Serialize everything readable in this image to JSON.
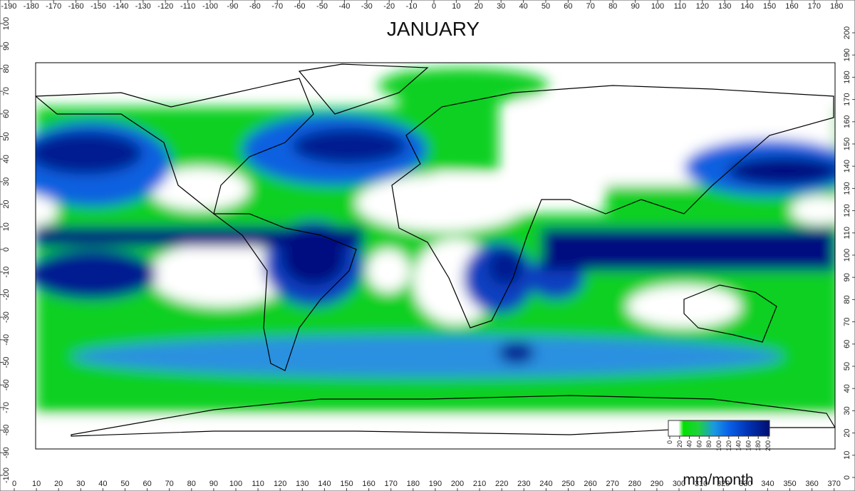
{
  "title": "JANUARY",
  "top_axis": [
    -190,
    -180,
    -170,
    -160,
    -150,
    -140,
    -130,
    -120,
    -110,
    -100,
    -90,
    -80,
    -70,
    -60,
    -50,
    -40,
    -30,
    -20,
    -10,
    0,
    10,
    20,
    30,
    40,
    50,
    60,
    70,
    80,
    90,
    100,
    110,
    120,
    130,
    140,
    150,
    160,
    170,
    180
  ],
  "bottom_axis": [
    0,
    10,
    20,
    30,
    40,
    50,
    60,
    70,
    80,
    90,
    100,
    110,
    120,
    130,
    140,
    150,
    160,
    170,
    180,
    190,
    200,
    210,
    220,
    230,
    240,
    250,
    260,
    270,
    280,
    290,
    300,
    310,
    320,
    330,
    340,
    350,
    360,
    370
  ],
  "left_axis": [
    100,
    90,
    80,
    70,
    60,
    50,
    40,
    30,
    20,
    10,
    0,
    -10,
    -20,
    -30,
    -40,
    -50,
    -60,
    -70,
    -80,
    -90,
    -100
  ],
  "right_axis": [
    200,
    190,
    180,
    170,
    160,
    150,
    140,
    130,
    120,
    110,
    100,
    90,
    80,
    70,
    60,
    50,
    40,
    30,
    20,
    10,
    0
  ],
  "colorbar": {
    "ticks": [
      0,
      20,
      40,
      60,
      80,
      100,
      120,
      140,
      160,
      180,
      200
    ],
    "unit": "mm/month"
  }
}
